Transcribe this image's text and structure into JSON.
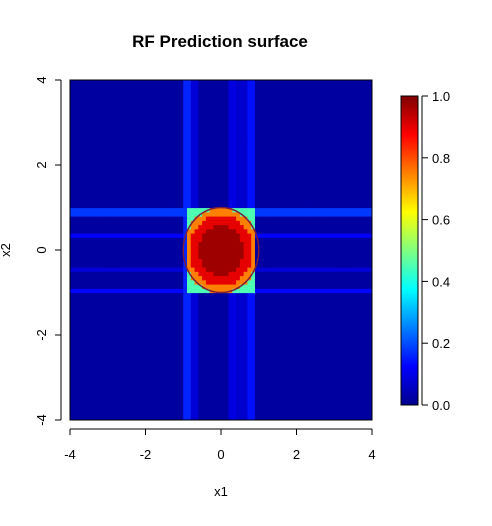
{
  "chart_data": {
    "type": "heatmap",
    "title": "RF Prediction surface",
    "xlabel": "x1",
    "ylabel": "x2",
    "xlim": [
      -4,
      4
    ],
    "ylim": [
      -4,
      4
    ],
    "x_ticks": [
      -4,
      -2,
      0,
      2,
      4
    ],
    "x_tick_labels": [
      "-4",
      "-2",
      "0",
      "2",
      "4"
    ],
    "y_ticks": [
      -4,
      -2,
      0,
      2,
      4
    ],
    "y_tick_labels": [
      "-4",
      "-2",
      "0",
      "2",
      "4"
    ],
    "colorbar": {
      "range": [
        0.0,
        1.0
      ],
      "ticks": [
        0.0,
        0.2,
        0.4,
        0.6,
        0.8,
        1.0
      ],
      "tick_labels": [
        "0.0",
        "0.2",
        "0.4",
        "0.6",
        "0.8",
        "1.0"
      ],
      "colormap": "jet"
    },
    "surface": {
      "background_value": 0.02,
      "grid_resolution": 0.1,
      "bands": [
        {
          "axis": "x",
          "from": -1.0,
          "to": -0.8,
          "value": 0.16
        },
        {
          "axis": "x",
          "from": -0.8,
          "to": -0.6,
          "value": 0.08
        },
        {
          "axis": "x",
          "from": 0.2,
          "to": 0.4,
          "value": 0.09
        },
        {
          "axis": "x",
          "from": 0.4,
          "to": 0.7,
          "value": 0.07
        },
        {
          "axis": "x",
          "from": 0.7,
          "to": 0.9,
          "value": 0.14
        },
        {
          "axis": "y",
          "from": 0.85,
          "to": 1.0,
          "value": 0.18
        },
        {
          "axis": "y",
          "from": 0.3,
          "to": 0.45,
          "value": 0.12
        },
        {
          "axis": "y",
          "from": -0.5,
          "to": -0.35,
          "value": 0.08
        },
        {
          "axis": "y",
          "from": -1.0,
          "to": -0.85,
          "value": 0.13
        }
      ],
      "inner_region": {
        "xlim": [
          -0.9,
          0.9
        ],
        "ylim": [
          -1.0,
          1.0
        ]
      },
      "core_values": [
        {
          "r_max": 0.6,
          "value": 0.97
        },
        {
          "r_max": 0.85,
          "value": 0.9
        },
        {
          "r_max": 1.0,
          "value": 0.75
        },
        {
          "r_max": 1.3,
          "value": 0.45
        }
      ]
    },
    "true_boundary": {
      "shape": "circle",
      "center": [
        0,
        0
      ],
      "radius": 1.0,
      "color": "#7a1e3a"
    }
  }
}
